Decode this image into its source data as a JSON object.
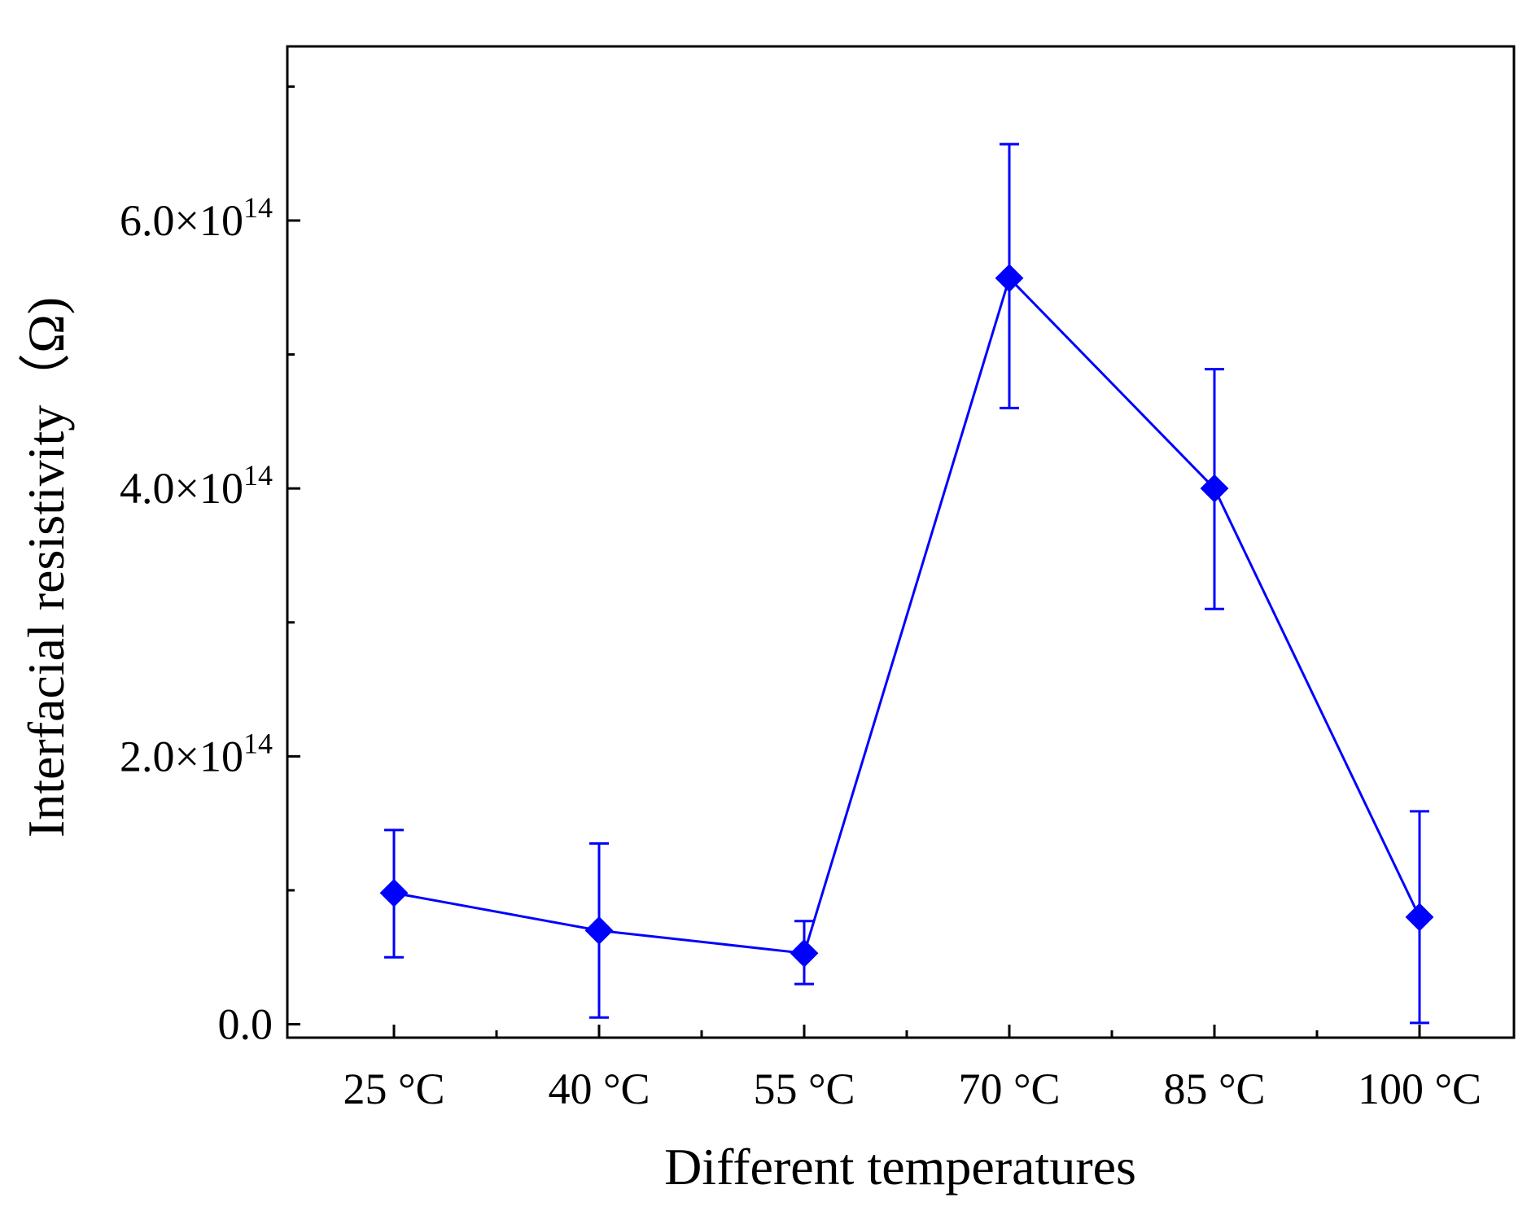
{
  "chart_data": {
    "type": "line",
    "title": "",
    "xlabel": "Different temperatures",
    "ylabel": "Interfacial resistivity（Ω)",
    "categories": [
      "25 °C",
      "40 °C",
      "55 °C",
      "70 °C",
      "85 °C",
      "100 °C"
    ],
    "series": [
      {
        "name": "Interfacial resistivity",
        "color": "#0000ff",
        "marker": "diamond",
        "values": [
          98000000000000.0,
          70000000000000.0,
          53000000000000.0,
          557000000000000.0,
          400000000000000.0,
          80000000000000.0
        ],
        "error_high": [
          145000000000000.0,
          135000000000000.0,
          77000000000000.0,
          657000000000000.0,
          489000000000000.0,
          159000000000000.0
        ],
        "error_low": [
          50000000000000.0,
          5000000000000.0,
          30000000000000.0,
          460000000000000.0,
          310000000000000.0,
          1000000000000.0
        ]
      }
    ],
    "ylim": [
      -10000000000000.0,
      730000000000000.0
    ],
    "yticks": [
      {
        "value": 0,
        "label": "0.0",
        "exp": ""
      },
      {
        "value": 200000000000000.0,
        "label": "2.0×10",
        "exp": "14"
      },
      {
        "value": 400000000000000.0,
        "label": "4.0×10",
        "exp": "14"
      },
      {
        "value": 600000000000000.0,
        "label": "6.0×10",
        "exp": "14"
      }
    ],
    "grid": false,
    "legend": "none"
  }
}
